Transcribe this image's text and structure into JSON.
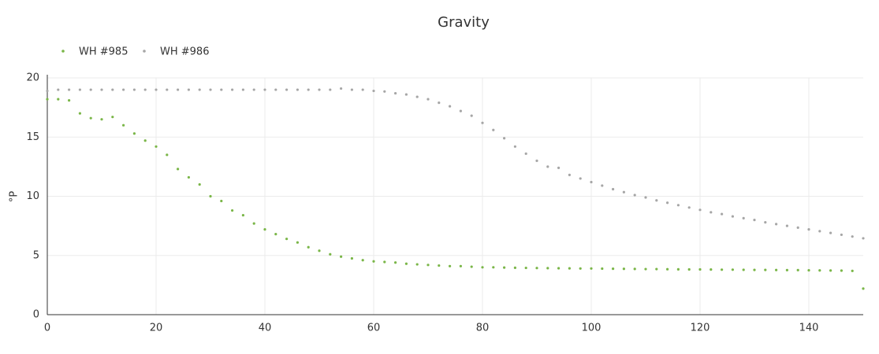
{
  "chart_data": {
    "type": "scatter",
    "title": "Gravity",
    "y_label": "°P",
    "x": [
      0,
      2,
      4,
      6,
      8,
      10,
      12,
      14,
      16,
      18,
      20,
      22,
      24,
      26,
      28,
      30,
      32,
      34,
      36,
      38,
      40,
      42,
      44,
      46,
      48,
      50,
      52,
      54,
      56,
      58,
      60,
      62,
      64,
      66,
      68,
      70,
      72,
      74,
      76,
      78,
      80,
      82,
      84,
      86,
      88,
      90,
      92,
      94,
      96,
      98,
      100,
      102,
      104,
      106,
      108,
      110,
      112,
      114,
      116,
      118,
      120,
      122,
      124,
      126,
      128,
      130,
      132,
      134,
      136,
      138,
      140,
      142,
      144,
      146,
      148,
      150
    ],
    "series": [
      {
        "name": "WH #985",
        "color": "#7ab648",
        "values": [
          18.2,
          18.2,
          18.1,
          17.0,
          16.6,
          16.5,
          16.7,
          16.0,
          15.3,
          14.7,
          14.2,
          13.5,
          12.3,
          11.6,
          11.0,
          10.0,
          9.6,
          8.8,
          8.4,
          7.7,
          7.2,
          6.8,
          6.4,
          6.1,
          5.7,
          5.4,
          5.1,
          4.9,
          4.75,
          4.6,
          4.5,
          4.45,
          4.4,
          4.3,
          4.25,
          4.2,
          4.15,
          4.1,
          4.1,
          4.05,
          4.0,
          4.0,
          3.98,
          3.96,
          3.95,
          3.94,
          3.93,
          3.92,
          3.91,
          3.9,
          3.9,
          3.89,
          3.88,
          3.87,
          3.86,
          3.85,
          3.85,
          3.84,
          3.83,
          3.82,
          3.82,
          3.81,
          3.8,
          3.8,
          3.79,
          3.78,
          3.78,
          3.77,
          3.76,
          3.76,
          3.75,
          3.74,
          3.73,
          3.72,
          3.7,
          2.2
        ]
      },
      {
        "name": "WH #986",
        "color": "#a6a6a6",
        "values": [
          18.9,
          19.0,
          19.0,
          19.0,
          19.0,
          19.0,
          19.0,
          19.0,
          19.0,
          19.0,
          19.0,
          19.0,
          19.0,
          19.0,
          19.0,
          19.0,
          19.0,
          19.0,
          19.0,
          19.0,
          19.0,
          19.0,
          19.0,
          19.0,
          19.0,
          19.0,
          19.0,
          19.1,
          19.0,
          19.0,
          18.9,
          18.85,
          18.7,
          18.6,
          18.4,
          18.2,
          17.9,
          17.6,
          17.2,
          16.8,
          16.2,
          15.6,
          14.9,
          14.2,
          13.6,
          13.0,
          12.5,
          12.4,
          11.8,
          11.5,
          11.2,
          10.9,
          10.6,
          10.35,
          10.1,
          9.9,
          9.65,
          9.45,
          9.25,
          9.05,
          8.85,
          8.65,
          8.5,
          8.3,
          8.15,
          8.0,
          7.8,
          7.65,
          7.5,
          7.35,
          7.2,
          7.05,
          6.9,
          6.75,
          6.6,
          6.45
        ]
      }
    ],
    "xlim": [
      0,
      150
    ],
    "xticks": [
      0,
      20,
      40,
      60,
      80,
      100,
      120,
      140
    ],
    "ylim": [
      0,
      20
    ],
    "yticks": [
      0,
      5,
      10,
      15,
      20
    ],
    "grid": true,
    "legend": "top-left"
  }
}
